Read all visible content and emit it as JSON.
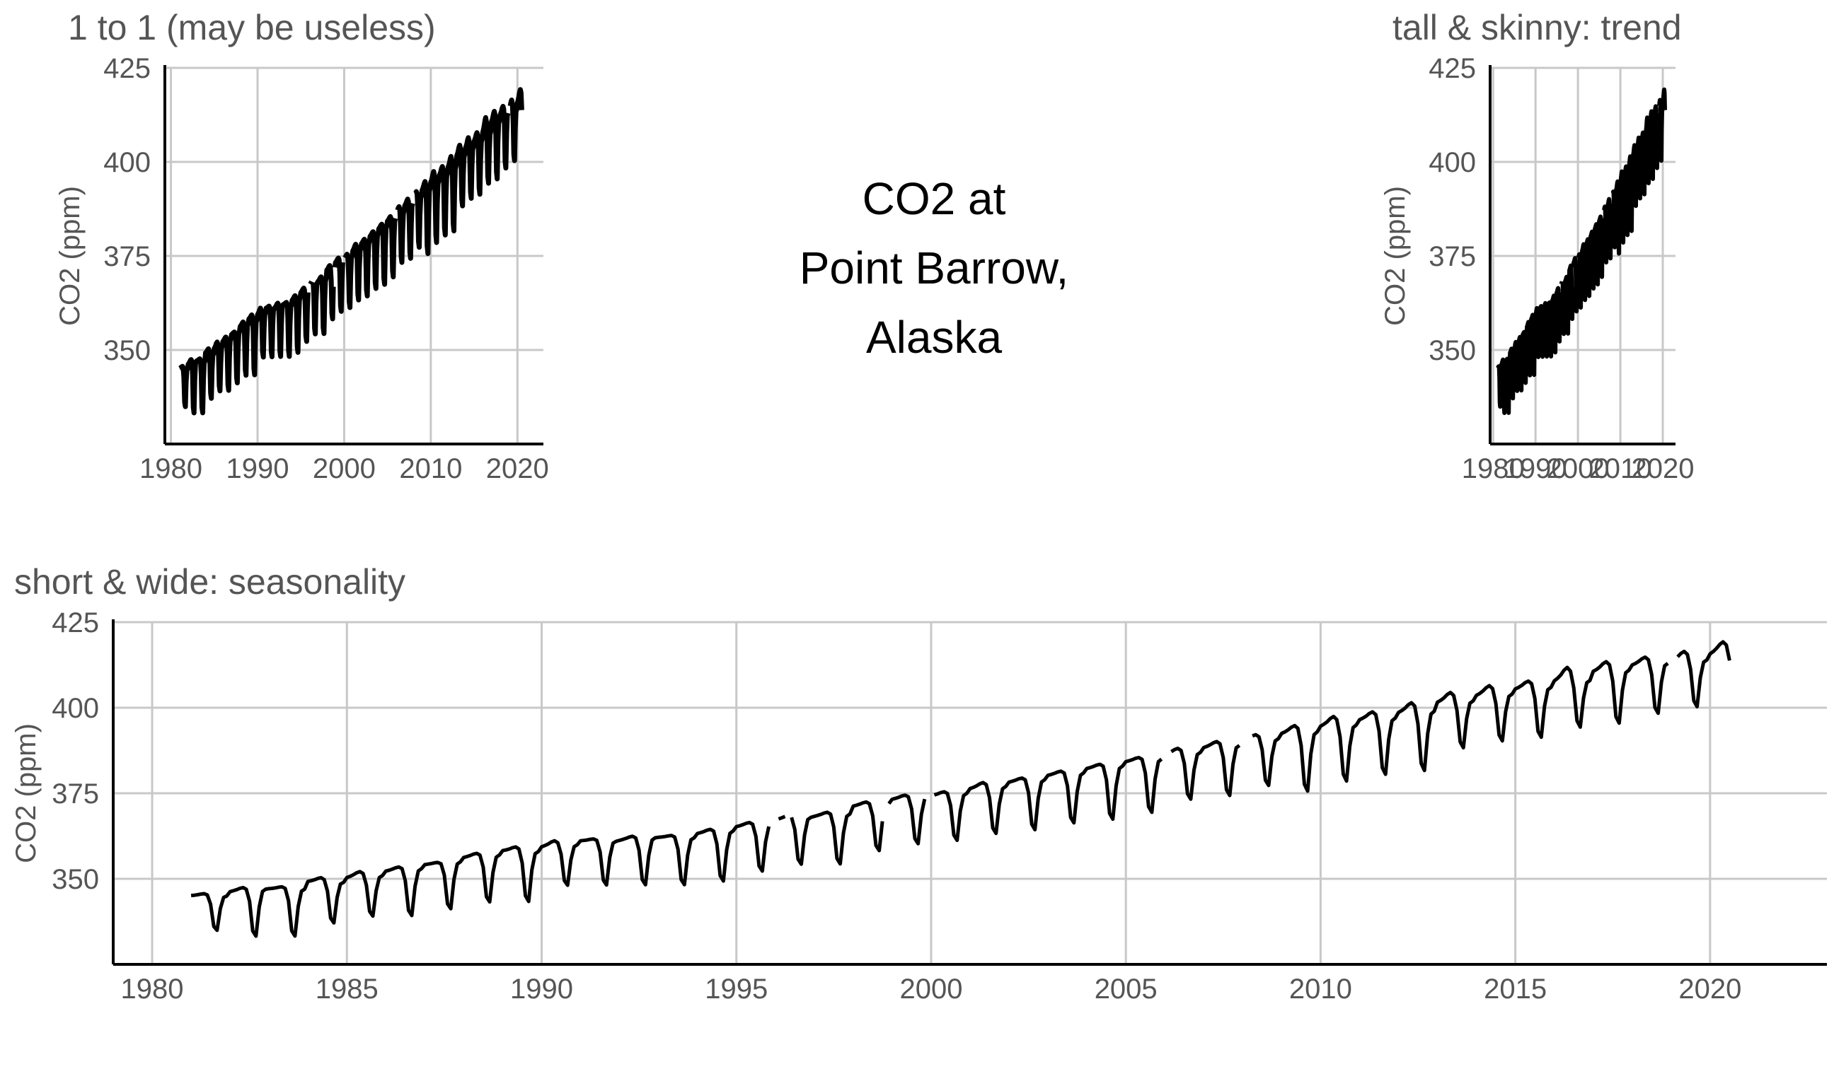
{
  "center_title": [
    "CO2 at",
    "Point Barrow,",
    "Alaska"
  ],
  "colors": {
    "line": "#000000",
    "grid": "#c8c8c8",
    "axis": "#000000",
    "text": "#555555"
  },
  "chart_data": [
    {
      "id": "square",
      "type": "line",
      "title": "1 to 1 (may be useless)",
      "xlabel": "",
      "ylabel": "CO2 (ppm)",
      "xlim": [
        1979.3,
        2023.0
      ],
      "ylim": [
        325,
        425
      ],
      "xticks": [
        1980,
        1990,
        2000,
        2010,
        2020
      ],
      "yticks": [
        350,
        375,
        400,
        425
      ],
      "grid": true,
      "legend": "none"
    },
    {
      "id": "tall",
      "type": "line",
      "title": "tall & skinny:  trend",
      "xlabel": "",
      "ylabel": "CO2 (ppm)",
      "xlim": [
        1979.3,
        2023.0
      ],
      "ylim": [
        325,
        425
      ],
      "xticks": [
        1980,
        1990,
        2000,
        2010,
        2020
      ],
      "yticks": [
        350,
        375,
        400,
        425
      ],
      "grid": true,
      "legend": "none"
    },
    {
      "id": "wide",
      "type": "line",
      "title": "short & wide: seasonality",
      "xlabel": "",
      "ylabel": "CO2 (ppm)",
      "xlim": [
        1979.0,
        2023.0
      ],
      "ylim": [
        325,
        425
      ],
      "xticks": [
        1980,
        1985,
        1990,
        1995,
        2000,
        2005,
        2010,
        2015,
        2020
      ],
      "yticks": [
        350,
        375,
        400,
        425
      ],
      "grid": true,
      "legend": "none"
    }
  ],
  "series": {
    "name": "",
    "annual": [
      {
        "year": 1981,
        "min": 334,
        "max": 346,
        "start": 345,
        "end": 345
      },
      {
        "year": 1982,
        "min": 332,
        "max": 348,
        "start": 346,
        "end": 347
      },
      {
        "year": 1983,
        "min": 332,
        "max": 348,
        "start": 347,
        "end": 347
      },
      {
        "year": 1984,
        "min": 336,
        "max": 351,
        "start": 349,
        "end": 349
      },
      {
        "year": 1985,
        "min": 338,
        "max": 353,
        "start": 350,
        "end": 351
      },
      {
        "year": 1986,
        "min": 338,
        "max": 354,
        "start": 352,
        "end": 353
      },
      {
        "year": 1987,
        "min": 340,
        "max": 355,
        "start": 354,
        "end": 355
      },
      {
        "year": 1988,
        "min": 342,
        "max": 358,
        "start": 356,
        "end": 357
      },
      {
        "year": 1989,
        "min": 342,
        "max": 360,
        "start": 358,
        "end": 358
      },
      {
        "year": 1990,
        "min": 347,
        "max": 362,
        "start": 359,
        "end": 360
      },
      {
        "year": 1991,
        "min": 347,
        "max": 362,
        "start": 361,
        "end": 361
      },
      {
        "year": 1992,
        "min": 347,
        "max": 363,
        "start": 361,
        "end": 362
      },
      {
        "year": 1993,
        "min": 347,
        "max": 363,
        "start": 362,
        "end": 362
      },
      {
        "year": 1994,
        "min": 348,
        "max": 365,
        "start": 363,
        "end": 364
      },
      {
        "year": 1995,
        "min": 351,
        "max": 367,
        "start": 365,
        "end": 366
      },
      {
        "year": 1996,
        "min": 353,
        "max": 369,
        "start": 367,
        "end": 368
      },
      {
        "year": 1997,
        "min": 353,
        "max": 370,
        "start": 368,
        "end": 369
      },
      {
        "year": 1998,
        "min": 357,
        "max": 373,
        "start": 371,
        "end": 372
      },
      {
        "year": 1999,
        "min": 359,
        "max": 375,
        "start": 373,
        "end": 374
      },
      {
        "year": 2000,
        "min": 360,
        "max": 376,
        "start": 374,
        "end": 375
      },
      {
        "year": 2001,
        "min": 362,
        "max": 379,
        "start": 376,
        "end": 377
      },
      {
        "year": 2002,
        "min": 363,
        "max": 380,
        "start": 378,
        "end": 379
      },
      {
        "year": 2003,
        "min": 365,
        "max": 382,
        "start": 380,
        "end": 381
      },
      {
        "year": 2004,
        "min": 366,
        "max": 384,
        "start": 382,
        "end": 383
      },
      {
        "year": 2005,
        "min": 368,
        "max": 386,
        "start": 384,
        "end": 385
      },
      {
        "year": 2006,
        "min": 372,
        "max": 389,
        "start": 386,
        "end": 387
      },
      {
        "year": 2007,
        "min": 373,
        "max": 391,
        "start": 388,
        "end": 389
      },
      {
        "year": 2008,
        "min": 376,
        "max": 393,
        "start": 390,
        "end": 391
      },
      {
        "year": 2009,
        "min": 374,
        "max": 396,
        "start": 392,
        "end": 393
      },
      {
        "year": 2010,
        "min": 377,
        "max": 399,
        "start": 394,
        "end": 395
      },
      {
        "year": 2011,
        "min": 379,
        "max": 400,
        "start": 396,
        "end": 397
      },
      {
        "year": 2012,
        "min": 380,
        "max": 403,
        "start": 398,
        "end": 399
      },
      {
        "year": 2013,
        "min": 387,
        "max": 406,
        "start": 401,
        "end": 402
      },
      {
        "year": 2014,
        "min": 389,
        "max": 408,
        "start": 403,
        "end": 404
      },
      {
        "year": 2015,
        "min": 390,
        "max": 409,
        "start": 405,
        "end": 406
      },
      {
        "year": 2016,
        "min": 393,
        "max": 414,
        "start": 407,
        "end": 408
      },
      {
        "year": 2017,
        "min": 394,
        "max": 415,
        "start": 410,
        "end": 411
      },
      {
        "year": 2018,
        "min": 397,
        "max": 416,
        "start": 412,
        "end": 413
      },
      {
        "year": 2019,
        "min": 399,
        "max": 418,
        "start": 413,
        "end": 414
      },
      {
        "year": 2020,
        "min": 401,
        "max": 421,
        "start": 415,
        "end": 417
      }
    ],
    "gaps": [
      [
        1995.85,
        1996.05
      ],
      [
        1996.3,
        1996.4
      ],
      [
        1998.8,
        1998.9
      ],
      [
        1999.85,
        2000.0
      ],
      [
        2006.0,
        2006.15
      ],
      [
        2007.95,
        2008.2
      ],
      [
        2018.95,
        2019.1
      ]
    ],
    "end_year": 2020.55
  }
}
